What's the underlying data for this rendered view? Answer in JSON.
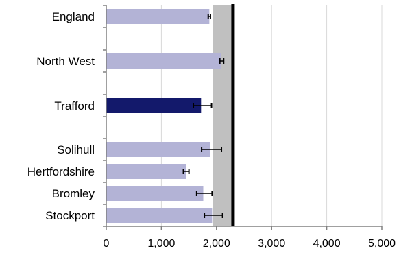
{
  "chart_data": {
    "type": "bar",
    "orientation": "horizontal",
    "categories": [
      "England",
      "North West",
      "Trafford",
      "Solihull",
      "Hertfordshire",
      "Bromley",
      "Stockport"
    ],
    "values": [
      1870,
      2090,
      1720,
      1890,
      1450,
      1760,
      1920
    ],
    "error_low": [
      1850,
      2060,
      1580,
      1730,
      1400,
      1640,
      1780
    ],
    "error_high": [
      1890,
      2130,
      1910,
      2090,
      1500,
      1920,
      2110
    ],
    "highlight_category": "Trafford",
    "x_ticks": [
      0,
      1000,
      2000,
      3000,
      4000,
      5000
    ],
    "x_tick_labels": [
      "0",
      "1,000",
      "2,000",
      "3,000",
      "4,000",
      "5,000"
    ],
    "xlim": [
      0,
      5000
    ],
    "reference_band": [
      1930,
      2300
    ],
    "reference_line": 2300,
    "title": "",
    "xlabel": "",
    "ylabel": "",
    "grid": "vertical",
    "legend": "none",
    "colors": {
      "bar": "#b3b3d6",
      "highlight_bar": "#13196b",
      "band": "#c0c0c0",
      "reference_line": "#000000",
      "grid": "#d9d9d9",
      "axis": "#808080",
      "error_bar": "#000000"
    }
  }
}
